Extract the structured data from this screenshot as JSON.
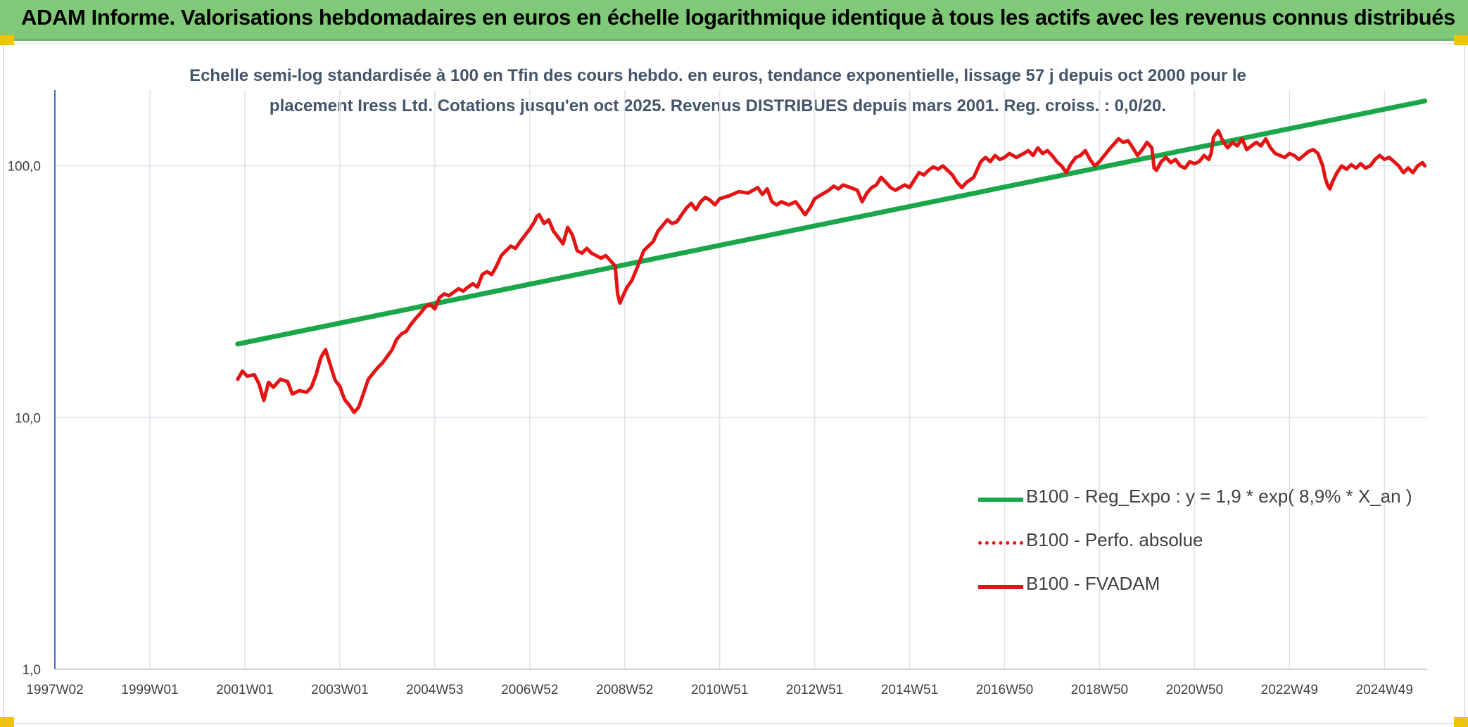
{
  "banner": {
    "title": "ADAM Informe. Valorisations hebdomadaires en euros en échelle logarithmique identique à tous les actifs avec les revenus connus distribués"
  },
  "colors": {
    "banner_bg": "#80c978",
    "corner_marks": "#f2c200",
    "trend_line": "#1aa64a",
    "fvadam_line": "#e41414",
    "perfo_line": "#e41414",
    "subtitle_text": "#44546a"
  },
  "chart_data": {
    "type": "line",
    "title": "Echelle semi-log standardisée à 100 en Tfin des cours hebdo. en euros, tendance exponentielle, lissage 57 j depuis oct 2000 pour le placement Iress Ltd. Cotations jusqu'en oct 2025. Revenus DISTRIBUES depuis mars 2001. Reg. croiss. : 0,0/20.",
    "subtitle_lines": [
      "Echelle semi-log standardisée à 100 en Tfin des cours hebdo. en euros, tendance exponentielle, lissage 57 j depuis oct 2000 pour le",
      "placement Iress Ltd. Cotations jusqu'en oct 2025. Revenus DISTRIBUES depuis mars 2001. Reg. croiss. : 0,0/20."
    ],
    "xlabel": "",
    "ylabel": "",
    "y_scale": "log",
    "ylim": [
      1,
      200
    ],
    "xlim": [
      1997.0,
      2025.9
    ],
    "y_ticks": [
      {
        "value": 1,
        "label": "1,0"
      },
      {
        "value": 10,
        "label": "10,0"
      },
      {
        "value": 100,
        "label": "100,0"
      }
    ],
    "x_ticks": [
      {
        "value": 1997.0,
        "label": "1997W02"
      },
      {
        "value": 1999.0,
        "label": "1999W01"
      },
      {
        "value": 2001.0,
        "label": "2001W01"
      },
      {
        "value": 2003.0,
        "label": "2003W01"
      },
      {
        "value": 2005.0,
        "label": "2004W53"
      },
      {
        "value": 2007.0,
        "label": "2006W52"
      },
      {
        "value": 2009.0,
        "label": "2008W52"
      },
      {
        "value": 2011.0,
        "label": "2010W51"
      },
      {
        "value": 2013.0,
        "label": "2012W51"
      },
      {
        "value": 2015.0,
        "label": "2014W51"
      },
      {
        "value": 2017.0,
        "label": "2016W50"
      },
      {
        "value": 2019.0,
        "label": "2018W50"
      },
      {
        "value": 2021.0,
        "label": "2020W50"
      },
      {
        "value": 2023.0,
        "label": "2022W49"
      },
      {
        "value": 2025.0,
        "label": "2024W49"
      }
    ],
    "grid": true,
    "legend_position": "bottom-right",
    "series": [
      {
        "name": "B100 - Reg_Expo : y = 1,9 * exp( 8,9% *  X_an )",
        "style": "solid-thick",
        "points": [
          [
            2000.85,
            19.6
          ],
          [
            2025.85,
            181.0
          ]
        ]
      },
      {
        "name": "B100 - Perfo. absolue",
        "style": "dotted",
        "points": []
      },
      {
        "name": "B100 - FVADAM",
        "style": "solid",
        "points": [
          [
            2000.85,
            14.2
          ],
          [
            2000.95,
            15.3
          ],
          [
            2001.05,
            14.6
          ],
          [
            2001.2,
            14.8
          ],
          [
            2001.3,
            13.6
          ],
          [
            2001.4,
            11.7
          ],
          [
            2001.5,
            13.8
          ],
          [
            2001.6,
            13.2
          ],
          [
            2001.75,
            14.2
          ],
          [
            2001.9,
            13.9
          ],
          [
            2002.0,
            12.4
          ],
          [
            2002.15,
            12.8
          ],
          [
            2002.3,
            12.6
          ],
          [
            2002.4,
            13.2
          ],
          [
            2002.5,
            14.8
          ],
          [
            2002.6,
            17.3
          ],
          [
            2002.7,
            18.6
          ],
          [
            2002.8,
            16.2
          ],
          [
            2002.9,
            14.1
          ],
          [
            2003.0,
            13.3
          ],
          [
            2003.1,
            11.8
          ],
          [
            2003.2,
            11.2
          ],
          [
            2003.3,
            10.5
          ],
          [
            2003.4,
            11.0
          ],
          [
            2003.5,
            12.5
          ],
          [
            2003.6,
            14.2
          ],
          [
            2003.7,
            15.0
          ],
          [
            2003.8,
            15.8
          ],
          [
            2003.9,
            16.5
          ],
          [
            2004.0,
            17.5
          ],
          [
            2004.1,
            18.6
          ],
          [
            2004.2,
            20.5
          ],
          [
            2004.3,
            21.5
          ],
          [
            2004.4,
            22.0
          ],
          [
            2004.5,
            23.5
          ],
          [
            2004.6,
            24.8
          ],
          [
            2004.7,
            26.0
          ],
          [
            2004.8,
            27.5
          ],
          [
            2004.9,
            28.2
          ],
          [
            2005.0,
            27.0
          ],
          [
            2005.1,
            30.0
          ],
          [
            2005.2,
            31.0
          ],
          [
            2005.3,
            30.5
          ],
          [
            2005.4,
            31.5
          ],
          [
            2005.5,
            32.5
          ],
          [
            2005.6,
            31.8
          ],
          [
            2005.7,
            33.0
          ],
          [
            2005.8,
            34.0
          ],
          [
            2005.9,
            33.0
          ],
          [
            2006.0,
            37.0
          ],
          [
            2006.1,
            38.0
          ],
          [
            2006.2,
            37.0
          ],
          [
            2006.3,
            40.0
          ],
          [
            2006.4,
            44.0
          ],
          [
            2006.5,
            46.0
          ],
          [
            2006.6,
            48.0
          ],
          [
            2006.7,
            47.0
          ],
          [
            2006.8,
            50.0
          ],
          [
            2006.9,
            53.0
          ],
          [
            2007.0,
            56.0
          ],
          [
            2007.1,
            60.0
          ],
          [
            2007.15,
            63.0
          ],
          [
            2007.2,
            64.0
          ],
          [
            2007.3,
            59.0
          ],
          [
            2007.4,
            61.0
          ],
          [
            2007.5,
            55.0
          ],
          [
            2007.6,
            52.0
          ],
          [
            2007.7,
            49.0
          ],
          [
            2007.8,
            57.0
          ],
          [
            2007.9,
            53.0
          ],
          [
            2008.0,
            46.0
          ],
          [
            2008.1,
            45.0
          ],
          [
            2008.2,
            47.0
          ],
          [
            2008.3,
            45.0
          ],
          [
            2008.4,
            44.0
          ],
          [
            2008.5,
            43.0
          ],
          [
            2008.6,
            44.0
          ],
          [
            2008.7,
            42.0
          ],
          [
            2008.8,
            40.0
          ],
          [
            2008.85,
            31.0
          ],
          [
            2008.9,
            28.5
          ],
          [
            2008.95,
            30.0
          ],
          [
            2009.05,
            33.0
          ],
          [
            2009.15,
            35.0
          ],
          [
            2009.3,
            41.0
          ],
          [
            2009.4,
            46.0
          ],
          [
            2009.5,
            48.0
          ],
          [
            2009.6,
            50.0
          ],
          [
            2009.7,
            55.0
          ],
          [
            2009.8,
            58.0
          ],
          [
            2009.9,
            61.0
          ],
          [
            2010.0,
            59.0
          ],
          [
            2010.1,
            60.0
          ],
          [
            2010.2,
            64.0
          ],
          [
            2010.3,
            68.0
          ],
          [
            2010.4,
            71.0
          ],
          [
            2010.5,
            67.0
          ],
          [
            2010.6,
            72.0
          ],
          [
            2010.7,
            75.0
          ],
          [
            2010.8,
            73.0
          ],
          [
            2010.9,
            70.0
          ],
          [
            2011.0,
            74.0
          ],
          [
            2011.2,
            76.0
          ],
          [
            2011.4,
            79.0
          ],
          [
            2011.6,
            78.0
          ],
          [
            2011.8,
            82.0
          ],
          [
            2011.9,
            77.0
          ],
          [
            2012.0,
            81.0
          ],
          [
            2012.1,
            72.0
          ],
          [
            2012.2,
            70.0
          ],
          [
            2012.3,
            72.0
          ],
          [
            2012.45,
            70.0
          ],
          [
            2012.6,
            72.0
          ],
          [
            2012.7,
            68.0
          ],
          [
            2012.8,
            64.0
          ],
          [
            2012.9,
            68.0
          ],
          [
            2013.0,
            74.0
          ],
          [
            2013.1,
            76.0
          ],
          [
            2013.2,
            78.0
          ],
          [
            2013.3,
            80.0
          ],
          [
            2013.4,
            83.0
          ],
          [
            2013.5,
            81.0
          ],
          [
            2013.6,
            84.0
          ],
          [
            2013.75,
            82.0
          ],
          [
            2013.9,
            80.0
          ],
          [
            2014.0,
            72.0
          ],
          [
            2014.1,
            78.0
          ],
          [
            2014.2,
            82.0
          ],
          [
            2014.3,
            84.0
          ],
          [
            2014.4,
            90.0
          ],
          [
            2014.5,
            86.0
          ],
          [
            2014.6,
            82.0
          ],
          [
            2014.7,
            80.0
          ],
          [
            2014.8,
            82.0
          ],
          [
            2014.9,
            84.0
          ],
          [
            2015.0,
            82.0
          ],
          [
            2015.1,
            88.0
          ],
          [
            2015.2,
            94.0
          ],
          [
            2015.3,
            92.0
          ],
          [
            2015.4,
            96.0
          ],
          [
            2015.5,
            99.0
          ],
          [
            2015.6,
            97.0
          ],
          [
            2015.7,
            100.0
          ],
          [
            2015.8,
            96.0
          ],
          [
            2015.9,
            92.0
          ],
          [
            2016.0,
            86.0
          ],
          [
            2016.1,
            82.0
          ],
          [
            2016.2,
            86.0
          ],
          [
            2016.35,
            90.0
          ],
          [
            2016.5,
            104.0
          ],
          [
            2016.6,
            108.0
          ],
          [
            2016.7,
            104.0
          ],
          [
            2016.8,
            110.0
          ],
          [
            2016.9,
            106.0
          ],
          [
            2017.0,
            108.0
          ],
          [
            2017.1,
            112.0
          ],
          [
            2017.25,
            108.0
          ],
          [
            2017.4,
            112.0
          ],
          [
            2017.5,
            115.0
          ],
          [
            2017.6,
            110.0
          ],
          [
            2017.7,
            118.0
          ],
          [
            2017.8,
            112.0
          ],
          [
            2017.9,
            115.0
          ],
          [
            2018.0,
            110.0
          ],
          [
            2018.1,
            104.0
          ],
          [
            2018.2,
            100.0
          ],
          [
            2018.3,
            94.0
          ],
          [
            2018.4,
            102.0
          ],
          [
            2018.5,
            108.0
          ],
          [
            2018.6,
            110.0
          ],
          [
            2018.7,
            115.0
          ],
          [
            2018.8,
            106.0
          ],
          [
            2018.9,
            100.0
          ],
          [
            2019.0,
            104.0
          ],
          [
            2019.1,
            110.0
          ],
          [
            2019.2,
            116.0
          ],
          [
            2019.3,
            122.0
          ],
          [
            2019.4,
            128.0
          ],
          [
            2019.5,
            124.0
          ],
          [
            2019.6,
            126.0
          ],
          [
            2019.7,
            118.0
          ],
          [
            2019.8,
            110.0
          ],
          [
            2019.9,
            116.0
          ],
          [
            2020.0,
            124.0
          ],
          [
            2020.1,
            118.0
          ],
          [
            2020.15,
            98.0
          ],
          [
            2020.2,
            96.0
          ],
          [
            2020.3,
            104.0
          ],
          [
            2020.4,
            108.0
          ],
          [
            2020.5,
            103.0
          ],
          [
            2020.6,
            106.0
          ],
          [
            2020.7,
            100.0
          ],
          [
            2020.8,
            98.0
          ],
          [
            2020.9,
            104.0
          ],
          [
            2021.0,
            102.0
          ],
          [
            2021.1,
            104.0
          ],
          [
            2021.2,
            110.0
          ],
          [
            2021.3,
            106.0
          ],
          [
            2021.35,
            112.0
          ],
          [
            2021.4,
            130.0
          ],
          [
            2021.5,
            138.0
          ],
          [
            2021.6,
            125.0
          ],
          [
            2021.7,
            118.0
          ],
          [
            2021.8,
            124.0
          ],
          [
            2021.9,
            120.0
          ],
          [
            2022.0,
            128.0
          ],
          [
            2022.1,
            116.0
          ],
          [
            2022.2,
            120.0
          ],
          [
            2022.3,
            124.0
          ],
          [
            2022.4,
            120.0
          ],
          [
            2022.5,
            128.0
          ],
          [
            2022.6,
            118.0
          ],
          [
            2022.7,
            112.0
          ],
          [
            2022.8,
            110.0
          ],
          [
            2022.9,
            108.0
          ],
          [
            2023.0,
            112.0
          ],
          [
            2023.1,
            110.0
          ],
          [
            2023.2,
            106.0
          ],
          [
            2023.3,
            110.0
          ],
          [
            2023.4,
            114.0
          ],
          [
            2023.5,
            116.0
          ],
          [
            2023.6,
            112.0
          ],
          [
            2023.7,
            100.0
          ],
          [
            2023.75,
            90.0
          ],
          [
            2023.8,
            84.0
          ],
          [
            2023.85,
            81.0
          ],
          [
            2023.9,
            86.0
          ],
          [
            2024.0,
            94.0
          ],
          [
            2024.1,
            100.0
          ],
          [
            2024.2,
            97.0
          ],
          [
            2024.3,
            101.0
          ],
          [
            2024.4,
            98.0
          ],
          [
            2024.5,
            102.0
          ],
          [
            2024.6,
            98.0
          ],
          [
            2024.7,
            100.0
          ],
          [
            2024.8,
            106.0
          ],
          [
            2024.9,
            110.0
          ],
          [
            2025.0,
            106.0
          ],
          [
            2025.1,
            108.0
          ],
          [
            2025.2,
            104.0
          ],
          [
            2025.3,
            100.0
          ],
          [
            2025.4,
            94.0
          ],
          [
            2025.5,
            98.0
          ],
          [
            2025.6,
            94.0
          ],
          [
            2025.7,
            100.0
          ],
          [
            2025.8,
            103.0
          ],
          [
            2025.85,
            100.0
          ]
        ]
      }
    ]
  }
}
